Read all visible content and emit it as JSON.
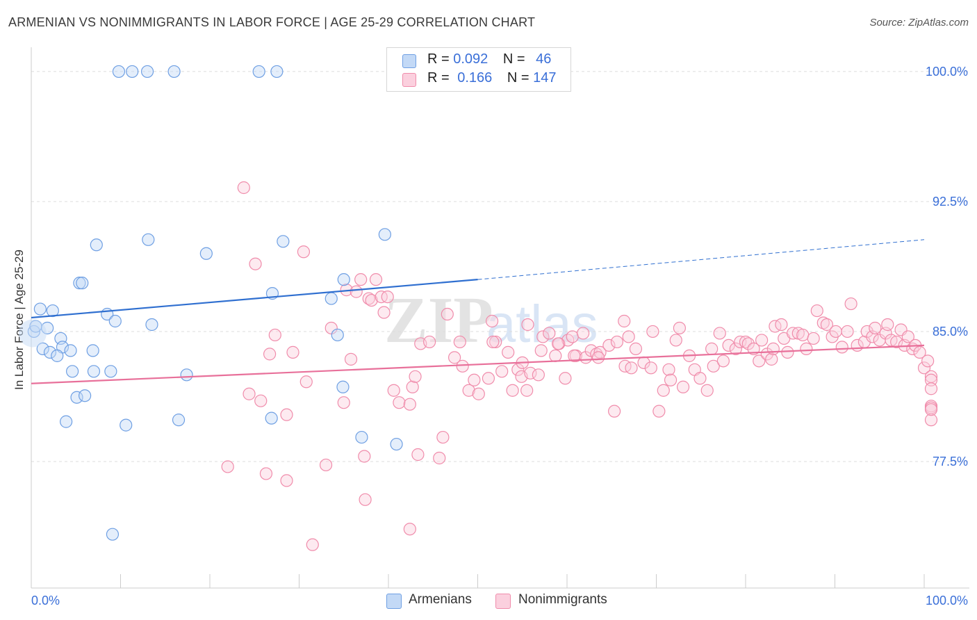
{
  "header": {
    "title": "ARMENIAN VS NONIMMIGRANTS IN LABOR FORCE | AGE 25-29 CORRELATION CHART",
    "source": "Source: ZipAtlas.com"
  },
  "legend": {
    "armenians": {
      "r_label": "R = ",
      "r_value": "0.092",
      "n_label": "N = ",
      "n_value": "46"
    },
    "nonimmigrants": {
      "r_label": "R = ",
      "r_value": "0.166",
      "n_label": "N = ",
      "n_value": "147"
    }
  },
  "bottom_legend": {
    "armenians": "Armenians",
    "nonimmigrants": "Nonimmigrants"
  },
  "chart_data": {
    "type": "scatter",
    "ylabel": "In Labor Force | Age 25-29",
    "x_tick_labels": [
      "0.0%",
      "100.0%"
    ],
    "y_tick_labels": [
      "100.0%",
      "92.5%",
      "85.0%",
      "77.5%"
    ],
    "xlim": [
      0,
      100
    ],
    "ylim": [
      70.2,
      101.0
    ],
    "y_ticks": [
      100.0,
      92.5,
      85.0,
      77.5
    ],
    "grid": "horizontal dashed",
    "colors": {
      "armenians": "#6e9fe3",
      "armenians_line": "#2f6fd0",
      "nonimmigrants": "#f08cab",
      "nonimmigrants_line": "#e8709a"
    },
    "series": [
      {
        "name": "Armenians",
        "trend": {
          "x0": 0,
          "y0": 85.8,
          "x1": 50,
          "y1": 88.0,
          "dashed_to_x": 100,
          "dashed_to_y": 90.3
        },
        "points": [
          [
            0.3,
            85.0
          ],
          [
            0.5,
            85.3
          ],
          [
            1.0,
            86.3
          ],
          [
            1.8,
            85.2
          ],
          [
            2.4,
            86.2
          ],
          [
            1.3,
            84.0
          ],
          [
            2.1,
            83.8
          ],
          [
            3.3,
            84.6
          ],
          [
            3.5,
            84.1
          ],
          [
            4.4,
            83.9
          ],
          [
            2.9,
            83.6
          ],
          [
            4.6,
            82.7
          ],
          [
            5.1,
            81.2
          ],
          [
            6.0,
            81.3
          ],
          [
            3.9,
            79.8
          ],
          [
            5.4,
            87.8
          ],
          [
            5.7,
            87.8
          ],
          [
            7.3,
            90.0
          ],
          [
            8.5,
            86.0
          ],
          [
            9.4,
            85.6
          ],
          [
            6.9,
            83.9
          ],
          [
            7.0,
            82.7
          ],
          [
            8.9,
            82.7
          ],
          [
            10.6,
            79.6
          ],
          [
            13.1,
            90.3
          ],
          [
            13.5,
            85.4
          ],
          [
            17.4,
            82.5
          ],
          [
            16.5,
            79.9
          ],
          [
            9.1,
            73.3
          ],
          [
            19.6,
            89.5
          ],
          [
            27.0,
            87.2
          ],
          [
            28.2,
            90.2
          ],
          [
            33.6,
            86.9
          ],
          [
            34.3,
            84.8
          ],
          [
            35.0,
            88.0
          ],
          [
            34.9,
            81.8
          ],
          [
            37.0,
            78.9
          ],
          [
            39.6,
            90.6
          ],
          [
            40.9,
            78.5
          ],
          [
            26.9,
            80.0
          ],
          [
            9.8,
            100.0
          ],
          [
            11.3,
            100.0
          ],
          [
            13.0,
            100.0
          ],
          [
            16.0,
            100.0
          ],
          [
            25.5,
            100.0
          ],
          [
            27.5,
            100.0
          ]
        ]
      },
      {
        "name": "Nonimmigrants",
        "trend": {
          "x0": 0,
          "y0": 82.0,
          "x1": 100,
          "y1": 84.2
        },
        "points": [
          [
            22.0,
            77.2
          ],
          [
            23.8,
            93.3
          ],
          [
            24.4,
            81.4
          ],
          [
            25.1,
            88.9
          ],
          [
            25.7,
            81.0
          ],
          [
            26.3,
            76.8
          ],
          [
            26.7,
            83.7
          ],
          [
            27.3,
            84.8
          ],
          [
            28.6,
            80.2
          ],
          [
            28.6,
            76.4
          ],
          [
            29.3,
            83.8
          ],
          [
            30.5,
            89.6
          ],
          [
            30.8,
            82.1
          ],
          [
            31.5,
            72.7
          ],
          [
            33.0,
            77.3
          ],
          [
            33.6,
            85.2
          ],
          [
            35.0,
            80.9
          ],
          [
            35.3,
            87.4
          ],
          [
            35.8,
            83.4
          ],
          [
            36.4,
            87.3
          ],
          [
            36.9,
            88.0
          ],
          [
            37.3,
            77.8
          ],
          [
            37.4,
            75.3
          ],
          [
            37.8,
            86.9
          ],
          [
            38.1,
            86.8
          ],
          [
            38.6,
            88.0
          ],
          [
            39.2,
            87.0
          ],
          [
            39.5,
            86.1
          ],
          [
            39.9,
            87.0
          ],
          [
            40.6,
            81.6
          ],
          [
            41.2,
            80.9
          ],
          [
            42.4,
            73.6
          ],
          [
            42.4,
            80.8
          ],
          [
            42.7,
            81.8
          ],
          [
            43.0,
            82.4
          ],
          [
            43.3,
            77.9
          ],
          [
            43.6,
            84.3
          ],
          [
            44.6,
            84.4
          ],
          [
            45.7,
            77.7
          ],
          [
            46.1,
            78.9
          ],
          [
            46.6,
            86.0
          ],
          [
            47.4,
            83.5
          ],
          [
            48.0,
            84.4
          ],
          [
            48.3,
            83.0
          ],
          [
            49.0,
            81.6
          ],
          [
            49.6,
            82.2
          ],
          [
            50.1,
            81.4
          ],
          [
            51.2,
            82.3
          ],
          [
            51.6,
            85.6
          ],
          [
            52.0,
            84.4
          ],
          [
            52.7,
            82.7
          ],
          [
            53.4,
            83.8
          ],
          [
            53.9,
            81.6
          ],
          [
            54.5,
            82.8
          ],
          [
            54.9,
            82.4
          ],
          [
            55.5,
            81.6
          ],
          [
            55.6,
            85.4
          ],
          [
            55.9,
            82.6
          ],
          [
            56.8,
            82.5
          ],
          [
            57.3,
            84.7
          ],
          [
            58.0,
            84.9
          ],
          [
            58.7,
            83.6
          ],
          [
            59.1,
            84.3
          ],
          [
            59.8,
            82.3
          ],
          [
            60.1,
            84.5
          ],
          [
            60.6,
            84.7
          ],
          [
            61.0,
            83.6
          ],
          [
            61.8,
            84.9
          ],
          [
            62.1,
            83.5
          ],
          [
            62.7,
            83.9
          ],
          [
            63.3,
            83.7
          ],
          [
            63.7,
            83.8
          ],
          [
            64.7,
            84.2
          ],
          [
            65.3,
            80.4
          ],
          [
            65.6,
            84.4
          ],
          [
            66.4,
            85.6
          ],
          [
            66.5,
            83.0
          ],
          [
            66.9,
            84.7
          ],
          [
            67.2,
            82.9
          ],
          [
            67.7,
            84.0
          ],
          [
            68.6,
            83.2
          ],
          [
            69.4,
            82.9
          ],
          [
            69.6,
            85.0
          ],
          [
            70.3,
            80.4
          ],
          [
            70.8,
            81.6
          ],
          [
            71.4,
            82.8
          ],
          [
            71.6,
            82.2
          ],
          [
            72.2,
            84.5
          ],
          [
            72.6,
            85.2
          ],
          [
            73.0,
            81.8
          ],
          [
            73.7,
            83.6
          ],
          [
            74.3,
            82.8
          ],
          [
            74.9,
            82.3
          ],
          [
            75.7,
            81.6
          ],
          [
            76.2,
            84.0
          ],
          [
            76.4,
            83.0
          ],
          [
            77.1,
            84.9
          ],
          [
            77.5,
            83.3
          ],
          [
            78.1,
            84.2
          ],
          [
            78.9,
            84.0
          ],
          [
            79.4,
            84.4
          ],
          [
            80.0,
            84.4
          ],
          [
            80.3,
            84.3
          ],
          [
            80.9,
            84.0
          ],
          [
            81.5,
            83.3
          ],
          [
            81.8,
            84.5
          ],
          [
            82.4,
            83.7
          ],
          [
            82.9,
            83.4
          ],
          [
            83.1,
            84.0
          ],
          [
            83.3,
            85.3
          ],
          [
            84.0,
            85.4
          ],
          [
            84.3,
            84.6
          ],
          [
            84.7,
            83.8
          ],
          [
            85.3,
            84.9
          ],
          [
            85.9,
            84.9
          ],
          [
            86.4,
            84.8
          ],
          [
            86.8,
            84.0
          ],
          [
            87.6,
            84.6
          ],
          [
            88.0,
            86.2
          ],
          [
            88.7,
            85.5
          ],
          [
            89.1,
            85.4
          ],
          [
            89.7,
            84.7
          ],
          [
            90.1,
            85.0
          ],
          [
            90.8,
            84.1
          ],
          [
            91.4,
            85.0
          ],
          [
            91.8,
            86.6
          ],
          [
            92.5,
            84.2
          ],
          [
            93.3,
            84.4
          ],
          [
            93.6,
            85.0
          ],
          [
            94.2,
            84.7
          ],
          [
            94.5,
            85.2
          ],
          [
            95.0,
            84.5
          ],
          [
            95.7,
            84.9
          ],
          [
            95.9,
            85.4
          ],
          [
            96.3,
            84.5
          ],
          [
            96.9,
            84.4
          ],
          [
            97.4,
            85.1
          ],
          [
            97.8,
            84.2
          ],
          [
            98.2,
            84.7
          ],
          [
            98.7,
            84.0
          ],
          [
            99.0,
            84.2
          ],
          [
            99.5,
            83.8
          ],
          [
            100.0,
            82.9
          ],
          [
            100.4,
            83.3
          ],
          [
            100.9,
            82.4
          ],
          [
            101.3,
            82.2
          ],
          [
            101.9,
            81.7
          ],
          [
            102.3,
            80.7
          ],
          [
            102.8,
            80.6
          ],
          [
            103.3,
            79.9
          ],
          [
            104.0,
            80.5
          ],
          [
            60.8,
            83.6
          ],
          [
            63.5,
            83.5
          ],
          [
            51.7,
            84.4
          ],
          [
            57.1,
            83.9
          ],
          [
            59.0,
            84.3
          ],
          [
            55.0,
            83.2
          ]
        ]
      }
    ]
  }
}
